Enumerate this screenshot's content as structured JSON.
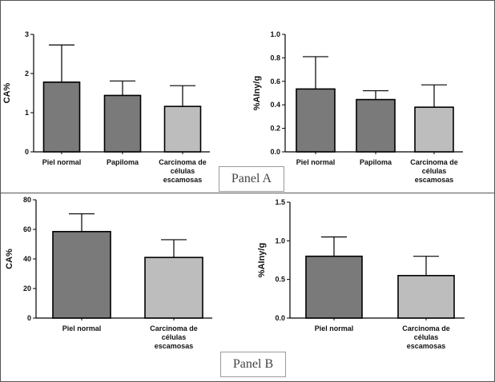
{
  "panels": {
    "a_label": "Panel A",
    "b_label": "Panel B"
  },
  "colors": {
    "dark_bar": "#7a7a7a",
    "light_bar": "#bdbdbd",
    "stroke": "#000000"
  },
  "chart_data": [
    {
      "type": "bar",
      "panel": "A",
      "ylabel": "CA%",
      "ylim": [
        0,
        3
      ],
      "yticks": [
        "0",
        "1",
        "2",
        "3"
      ],
      "categories": [
        [
          "Piel normal"
        ],
        [
          "Papiloma"
        ],
        [
          "Carcinoma de",
          "células",
          "escamosas"
        ]
      ],
      "values": [
        1.78,
        1.44,
        1.16
      ],
      "errors": [
        0.95,
        0.37,
        0.53
      ],
      "colors": [
        "dark",
        "dark",
        "light"
      ]
    },
    {
      "type": "bar",
      "panel": "A",
      "ylabel": "%AIny/g",
      "ylim": [
        0,
        1
      ],
      "yticks": [
        "0.0",
        "0.2",
        "0.4",
        "0.6",
        "0.8",
        "1.0"
      ],
      "categories": [
        [
          "Piel normal"
        ],
        [
          "Papiloma"
        ],
        [
          "Carcinoma de",
          "células",
          "escamosas"
        ]
      ],
      "values": [
        0.535,
        0.445,
        0.38
      ],
      "errors": [
        0.275,
        0.075,
        0.19
      ],
      "colors": [
        "dark",
        "dark",
        "light"
      ]
    },
    {
      "type": "bar",
      "panel": "B",
      "ylabel": "CA%",
      "ylim": [
        0,
        80
      ],
      "yticks": [
        "0",
        "20",
        "40",
        "60",
        "80"
      ],
      "categories": [
        [
          "Piel normal"
        ],
        [
          "Carcinoma de",
          "células",
          "escamosas"
        ]
      ],
      "values": [
        58.5,
        41.0
      ],
      "errors": [
        12.0,
        12.0
      ],
      "colors": [
        "dark",
        "light"
      ]
    },
    {
      "type": "bar",
      "panel": "B",
      "ylabel": "%AIny/g",
      "ylim": [
        0,
        1.5
      ],
      "yticks": [
        "0.0",
        "0.5",
        "1.0",
        "1.5"
      ],
      "categories": [
        [
          "Piel normal"
        ],
        [
          "Carcinoma de",
          "células",
          "escamosas"
        ]
      ],
      "values": [
        0.8,
        0.55
      ],
      "errors": [
        0.25,
        0.25
      ],
      "colors": [
        "dark",
        "light"
      ]
    }
  ]
}
